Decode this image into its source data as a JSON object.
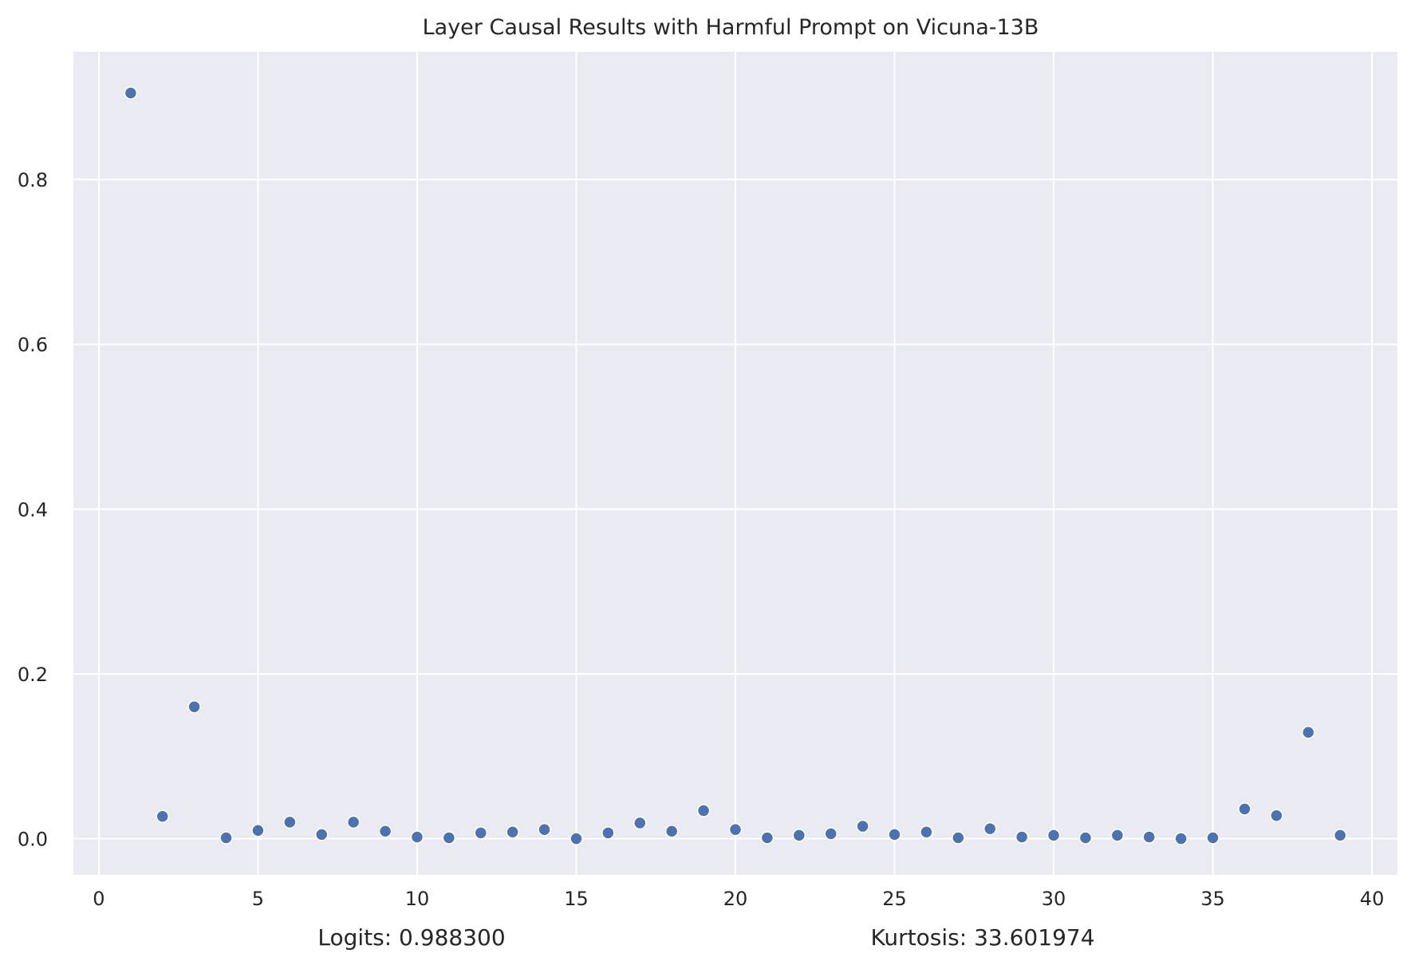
{
  "chart_data": {
    "type": "scatter",
    "title": "Layer Causal Results with Harmful Prompt on Vicuna-13B",
    "xlabel": "",
    "ylabel": "",
    "xlim": [
      -0.8,
      40.8
    ],
    "ylim": [
      -0.044,
      0.955
    ],
    "xticks": [
      0,
      5,
      10,
      15,
      20,
      25,
      30,
      35,
      40
    ],
    "yticks": [
      0.0,
      0.2,
      0.4,
      0.6,
      0.8
    ],
    "ytick_labels": [
      "0.0",
      "0.2",
      "0.4",
      "0.6",
      "0.8"
    ],
    "grid": true,
    "color": "#4c72b0",
    "background": "#eaeaf2",
    "x": [
      1,
      2,
      3,
      4,
      5,
      6,
      7,
      8,
      9,
      10,
      11,
      12,
      13,
      14,
      15,
      16,
      17,
      18,
      19,
      20,
      21,
      22,
      23,
      24,
      25,
      26,
      27,
      28,
      29,
      30,
      31,
      32,
      33,
      34,
      35,
      36,
      37,
      38,
      39
    ],
    "y": [
      0.905,
      0.027,
      0.16,
      0.001,
      0.01,
      0.02,
      0.005,
      0.02,
      0.009,
      0.002,
      0.001,
      0.007,
      0.008,
      0.011,
      0.0,
      0.007,
      0.019,
      0.009,
      0.034,
      0.011,
      0.001,
      0.004,
      0.006,
      0.015,
      0.005,
      0.008,
      0.001,
      0.012,
      0.002,
      0.004,
      0.001,
      0.004,
      0.002,
      0.0,
      0.001,
      0.036,
      0.028,
      0.129,
      0.004
    ],
    "annotations": [
      "Logits: 0.988300",
      "Kurtosis: 33.601974"
    ]
  }
}
